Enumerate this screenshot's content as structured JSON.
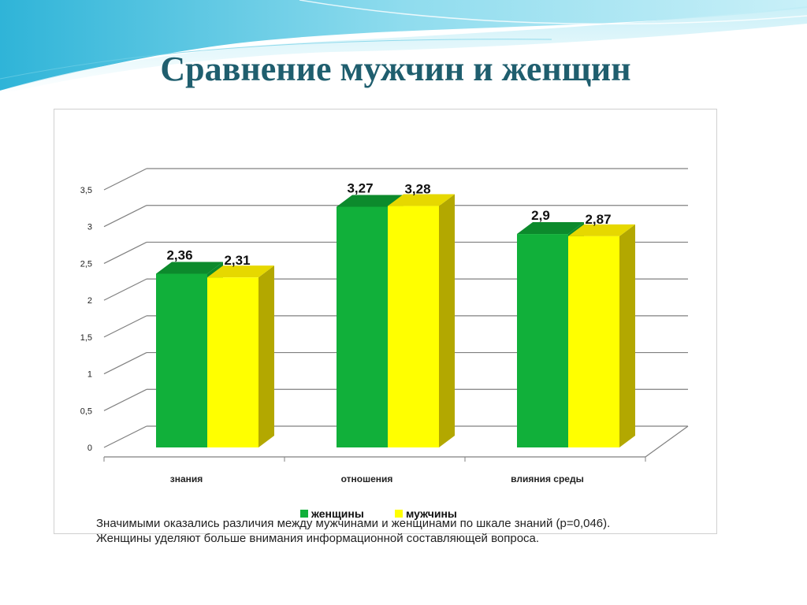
{
  "title": "Сравнение мужчин и женщин",
  "note": {
    "line1": "Значимыми оказались различия между мужчинами и женщинами по шкале знаний (р=0,046).",
    "line2": "Женщины уделяют больше внимания информационной составляющей вопроса."
  },
  "colors": {
    "title": "#1f5e6e",
    "women": "#11b03a",
    "women_top": "#0c8a2c",
    "men": "#ffff00",
    "men_top": "#e6d800",
    "men_side": "#b3a800"
  },
  "chart_data": {
    "type": "bar",
    "categories": [
      "знания",
      "отношения",
      "влияния среды"
    ],
    "series": [
      {
        "name": "женщины",
        "values": [
          2.36,
          3.27,
          2.9
        ],
        "labels": [
          "2,36",
          "3,27",
          "2,9"
        ]
      },
      {
        "name": "мужчины",
        "values": [
          2.31,
          3.28,
          2.87
        ],
        "labels": [
          "2,31",
          "3,28",
          "2,87"
        ]
      }
    ],
    "yticks": [
      0,
      0.5,
      1,
      1.5,
      2,
      2.5,
      3,
      3.5
    ],
    "ytick_labels": [
      "0",
      "0,5",
      "1",
      "1,5",
      "2",
      "2,5",
      "3",
      "3,5"
    ],
    "ylim": [
      0,
      3.5
    ],
    "grid": true,
    "legend": "bottom",
    "style": "3d"
  }
}
